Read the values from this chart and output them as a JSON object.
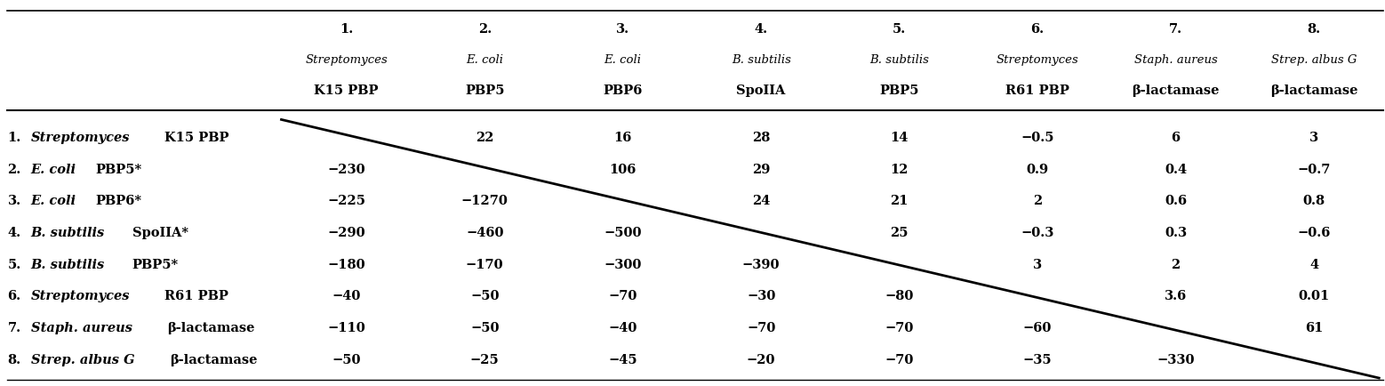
{
  "col_headers_line1": [
    "1.",
    "2.",
    "3.",
    "4.",
    "5.",
    "6.",
    "7.",
    "8."
  ],
  "col_headers_line2": [
    "Streptomyces",
    "E. coli",
    "E. coli",
    "B. subtilis",
    "B. subtilis",
    "Streptomyces",
    "Staph. aureus",
    "Strep. albus G"
  ],
  "col_headers_line3": [
    "K15 PBP",
    "PBP5",
    "PBP6",
    "SpoIIA",
    "PBP5",
    "R61 PBP",
    "β-lactamase",
    "β-lactamase"
  ],
  "row_headers_num": [
    "1.",
    "2.",
    "3.",
    "4.",
    "5.",
    "6.",
    "7.",
    "8."
  ],
  "row_headers_italic": [
    "Streptomyces",
    "E. coli",
    "E. coli",
    "B. subtilis",
    "B. subtilis",
    "Streptomyces",
    "Staph. aureus",
    "Strep. albus G"
  ],
  "row_headers_plain": [
    "K15 PBP",
    "PBP5*",
    "PBP6*",
    "SpoIIA*",
    "PBP5*",
    "R61 PBP",
    "β-lactamase",
    "β-lactamase"
  ],
  "data": [
    [
      "",
      "22",
      "16",
      "28",
      "14",
      "−0.5",
      "6",
      "3"
    ],
    [
      "−230",
      "",
      "106",
      "29",
      "12",
      "0.9",
      "0.4",
      "−0.7"
    ],
    [
      "−225",
      "−1270",
      "",
      "24",
      "21",
      "2",
      "0.6",
      "0.8"
    ],
    [
      "−290",
      "−460",
      "−500",
      "",
      "25",
      "−0.3",
      "0.3",
      "−0.6"
    ],
    [
      "−180",
      "−170",
      "−300",
      "−390",
      "",
      "3",
      "2",
      "4"
    ],
    [
      "−40",
      "−50",
      "−70",
      "−30",
      "−80",
      "",
      "3.6",
      "0.01"
    ],
    [
      "−110",
      "−50",
      "−40",
      "−70",
      "−70",
      "−60",
      "",
      "61"
    ],
    [
      "−50",
      "−25",
      "−45",
      "−20",
      "−70",
      "−35",
      "−330",
      ""
    ]
  ],
  "figsize": [
    15.58,
    4.34
  ],
  "dpi": 100
}
